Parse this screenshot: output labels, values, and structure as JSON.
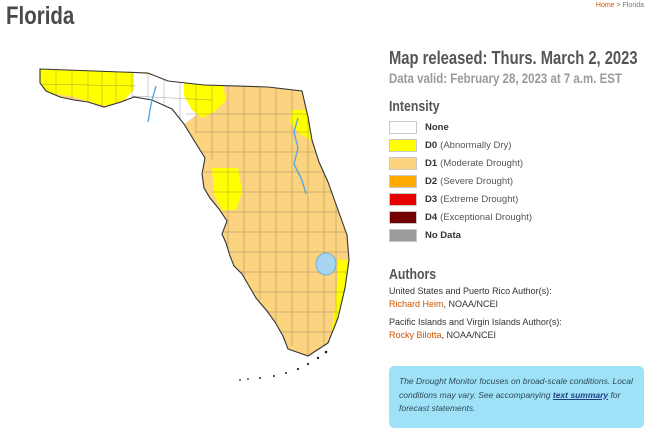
{
  "page": {
    "title": "Florida",
    "breadcrumb": {
      "home": "Home",
      "separator": ">",
      "current": "Florida"
    }
  },
  "map": {
    "state": "Florida",
    "colors": {
      "none": "#ffffff",
      "d0": "#ffff00",
      "d1": "#fcd37f",
      "d2": "#ffaa00",
      "d3": "#e60000",
      "d4": "#730000",
      "no_data": "#9b9b9b",
      "water": "#a6d6f2",
      "border": "#444444"
    }
  },
  "info": {
    "released": "Map released: Thurs. March 2, 2023",
    "valid": "Data valid: February 28, 2023 at 7 a.m. EST",
    "intensity_title": "Intensity",
    "legend": [
      {
        "code": "None",
        "desc": "",
        "color": "#ffffff"
      },
      {
        "code": "D0",
        "desc": "(Abnormally Dry)",
        "color": "#ffff00"
      },
      {
        "code": "D1",
        "desc": "(Moderate Drought)",
        "color": "#fcd37f"
      },
      {
        "code": "D2",
        "desc": "(Severe Drought)",
        "color": "#ffaa00"
      },
      {
        "code": "D3",
        "desc": "(Extreme Drought)",
        "color": "#e60000"
      },
      {
        "code": "D4",
        "desc": "(Exceptional Drought)",
        "color": "#730000"
      },
      {
        "code": "No Data",
        "desc": "",
        "color": "#9b9b9b"
      }
    ],
    "authors_title": "Authors",
    "author_groups": [
      {
        "heading": "United States and Puerto Rico Author(s):",
        "name": "Richard Heim",
        "affiliation": ", NOAA/NCEI"
      },
      {
        "heading": "Pacific Islands and Virgin Islands Author(s):",
        "name": "Rocky Bilotta",
        "affiliation": ", NOAA/NCEI"
      }
    ]
  },
  "notice": {
    "text1": "The Drought Monitor focuses on broad-scale conditions. Local conditions may vary. See accompanying ",
    "link": "text summary",
    "text2": " for forecast statements."
  }
}
